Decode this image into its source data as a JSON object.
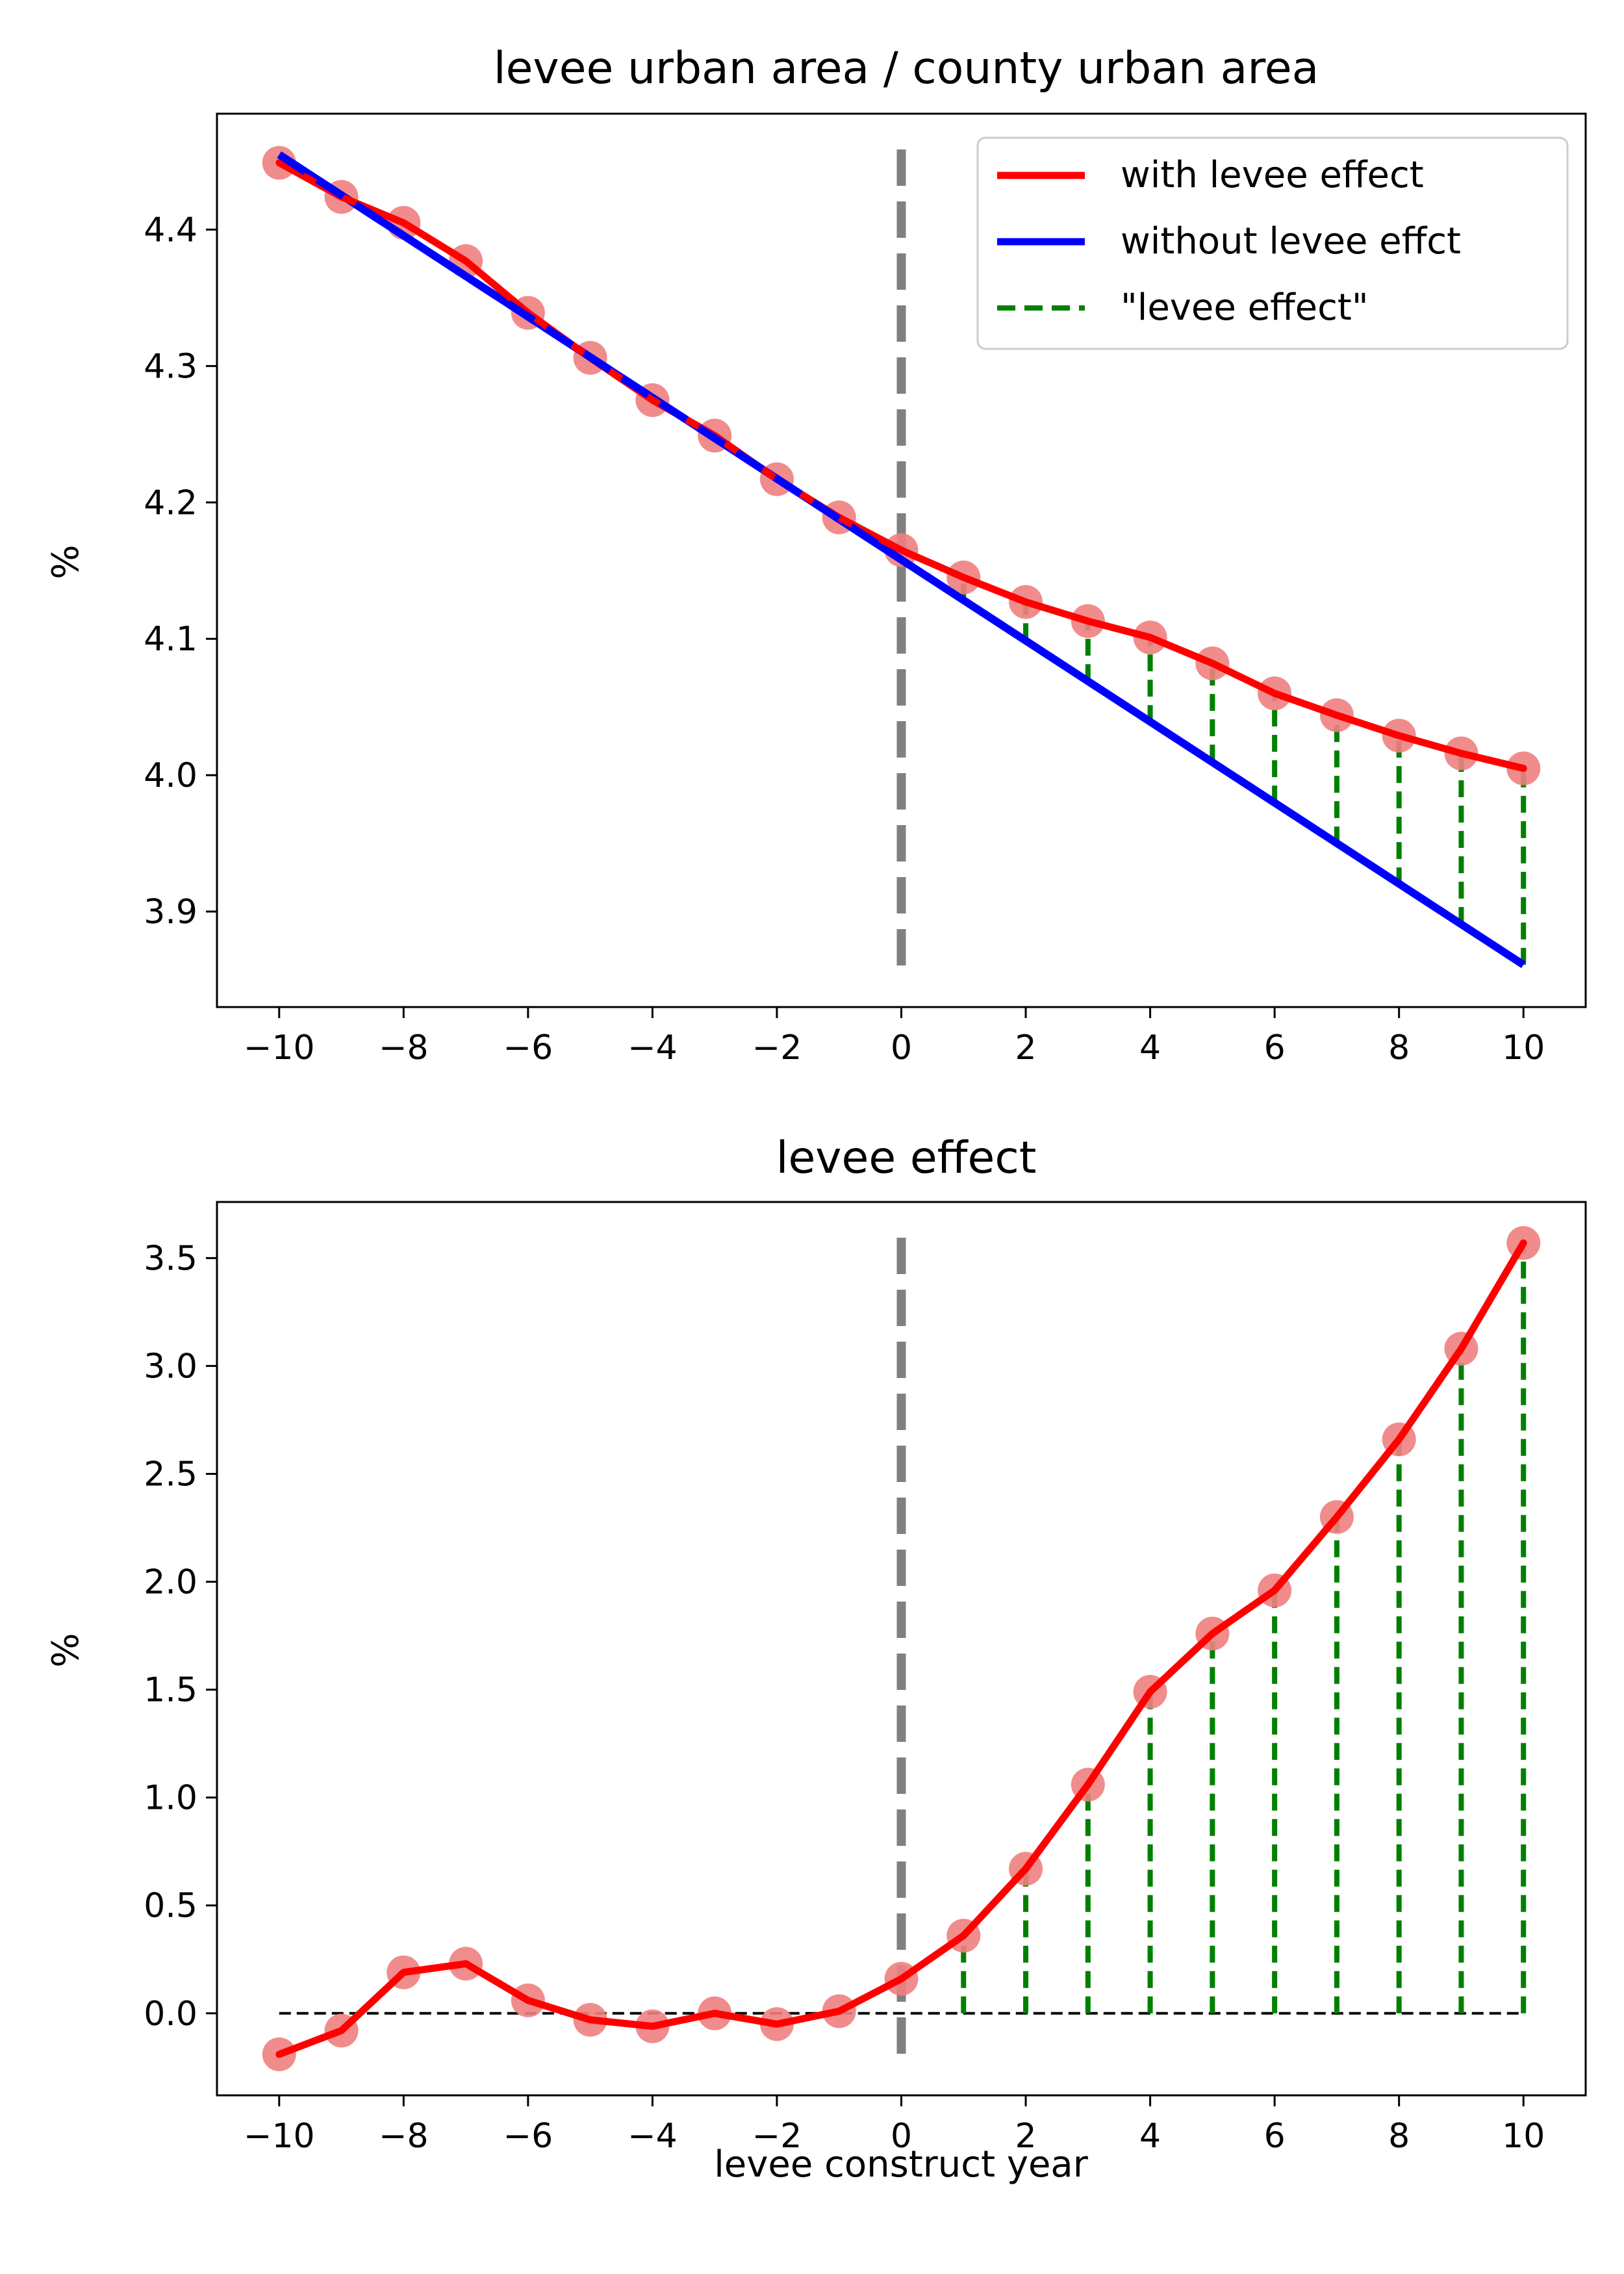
{
  "chart_data": [
    {
      "type": "line",
      "title": "levee urban area / county urban area",
      "xlabel": "",
      "ylabel": "%",
      "xlim": [
        -11,
        11
      ],
      "ylim": [
        3.83,
        4.485
      ],
      "xticks": [
        -10,
        -8,
        -6,
        -4,
        -2,
        0,
        2,
        4,
        6,
        8,
        10
      ],
      "xtick_labels": [
        "−10",
        "−8",
        "−6",
        "−4",
        "−2",
        "0",
        "2",
        "4",
        "6",
        "8",
        "10"
      ],
      "yticks": [
        3.9,
        4.0,
        4.1,
        4.2,
        4.3,
        4.4
      ],
      "ytick_labels": [
        "3.9",
        "4.0",
        "4.1",
        "4.2",
        "4.3",
        "4.4"
      ],
      "x": [
        -10,
        -9,
        -8,
        -7,
        -6,
        -5,
        -4,
        -3,
        -2,
        -1,
        0,
        1,
        2,
        3,
        4,
        5,
        6,
        7,
        8,
        9,
        10
      ],
      "series": [
        {
          "name": "with levee effect",
          "color": "#ff0000",
          "values": [
            4.449,
            4.424,
            4.405,
            4.377,
            4.339,
            4.306,
            4.275,
            4.249,
            4.217,
            4.189,
            4.165,
            4.145,
            4.127,
            4.113,
            4.101,
            4.082,
            4.06,
            4.044,
            4.029,
            4.016,
            4.005
          ]
        },
        {
          "name": "without levee effct",
          "color": "#0000ff",
          "values": [
            4.455,
            4.425,
            4.395,
            4.366,
            4.336,
            4.306,
            4.277,
            4.247,
            4.217,
            4.188,
            4.158,
            4.128,
            4.099,
            4.069,
            4.039,
            4.01,
            3.98,
            3.95,
            3.92,
            3.891,
            3.861
          ]
        }
      ],
      "stem_series": {
        "name": "\"levee effect\"",
        "color": "#008000",
        "x": [
          1,
          2,
          3,
          4,
          5,
          6,
          7,
          8,
          9,
          10
        ]
      },
      "vline": {
        "x": 0,
        "color": "#808080"
      },
      "marker_color": "#f08080",
      "grid": false,
      "legend_position": "top-right"
    },
    {
      "type": "line",
      "title": "levee effect",
      "xlabel": "levee construct year",
      "ylabel": "%",
      "xlim": [
        -11,
        11
      ],
      "ylim": [
        -0.38,
        3.76
      ],
      "xticks": [
        -10,
        -8,
        -6,
        -4,
        -2,
        0,
        2,
        4,
        6,
        8,
        10
      ],
      "xtick_labels": [
        "−10",
        "−8",
        "−6",
        "−4",
        "−2",
        "0",
        "2",
        "4",
        "6",
        "8",
        "10"
      ],
      "yticks": [
        0.0,
        0.5,
        1.0,
        1.5,
        2.0,
        2.5,
        3.0,
        3.5
      ],
      "ytick_labels": [
        "0.0",
        "0.5",
        "1.0",
        "1.5",
        "2.0",
        "2.5",
        "3.0",
        "3.5"
      ],
      "x": [
        -10,
        -9,
        -8,
        -7,
        -6,
        -5,
        -4,
        -3,
        -2,
        -1,
        0,
        1,
        2,
        3,
        4,
        5,
        6,
        7,
        8,
        9,
        10
      ],
      "series": [
        {
          "name": "levee effect",
          "color": "#ff0000",
          "values": [
            -0.19,
            -0.08,
            0.19,
            0.23,
            0.06,
            -0.03,
            -0.06,
            0.0,
            -0.05,
            0.01,
            0.16,
            0.36,
            0.67,
            1.06,
            1.49,
            1.76,
            1.96,
            2.3,
            2.66,
            3.08,
            3.57
          ]
        }
      ],
      "stem_series": {
        "color": "#008000",
        "x": [
          1,
          2,
          3,
          4,
          5,
          6,
          7,
          8,
          9,
          10
        ]
      },
      "zero_line": {
        "y": 0,
        "color": "#000000"
      },
      "vline": {
        "x": 0,
        "color": "#808080"
      },
      "marker_color": "#f08080",
      "grid": false
    }
  ]
}
